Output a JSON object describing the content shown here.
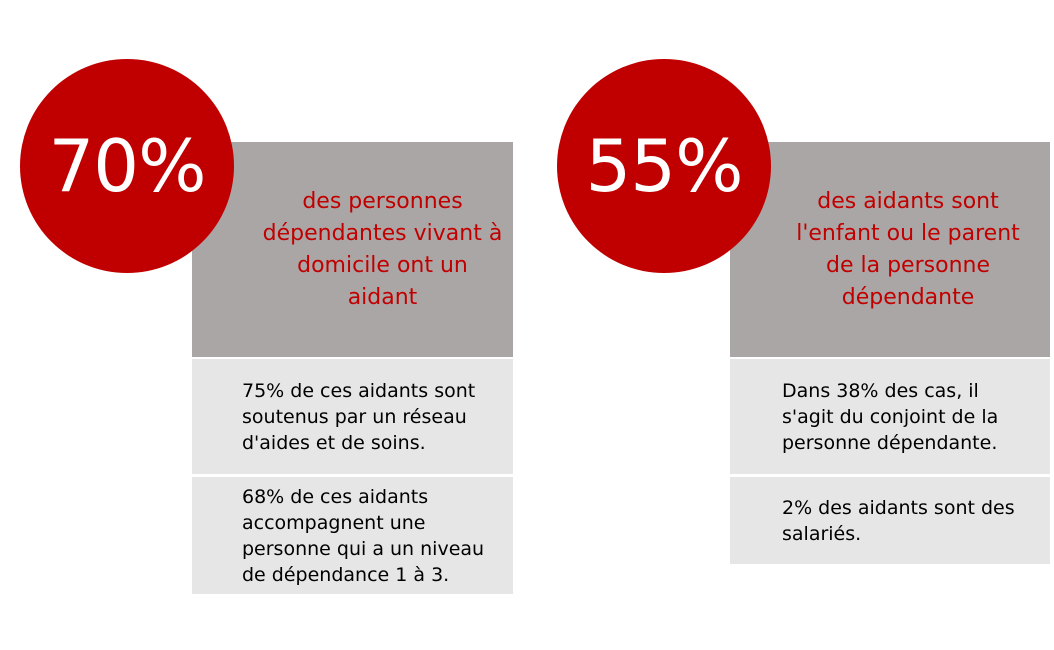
{
  "colors": {
    "accent_red": "#c00000",
    "headline_bg": "#aba6a6",
    "row_bg": "#e6e6e6"
  },
  "cards": [
    {
      "stat": "70%",
      "headline": "des personnes dépendantes vivant à domicile ont un aidant",
      "details": [
        "75% de ces aidants sont soutenus par un réseau d'aides et de soins.",
        "68% de ces aidants accompagnent une personne qui a un niveau de dépendance 1 à 3."
      ]
    },
    {
      "stat": "55%",
      "headline": "des aidants sont l'enfant ou le parent de la personne dépendante",
      "details": [
        "Dans 38% des cas, il s'agit du conjoint de la personne dépendante.",
        "2% des aidants sont des salariés."
      ]
    }
  ]
}
